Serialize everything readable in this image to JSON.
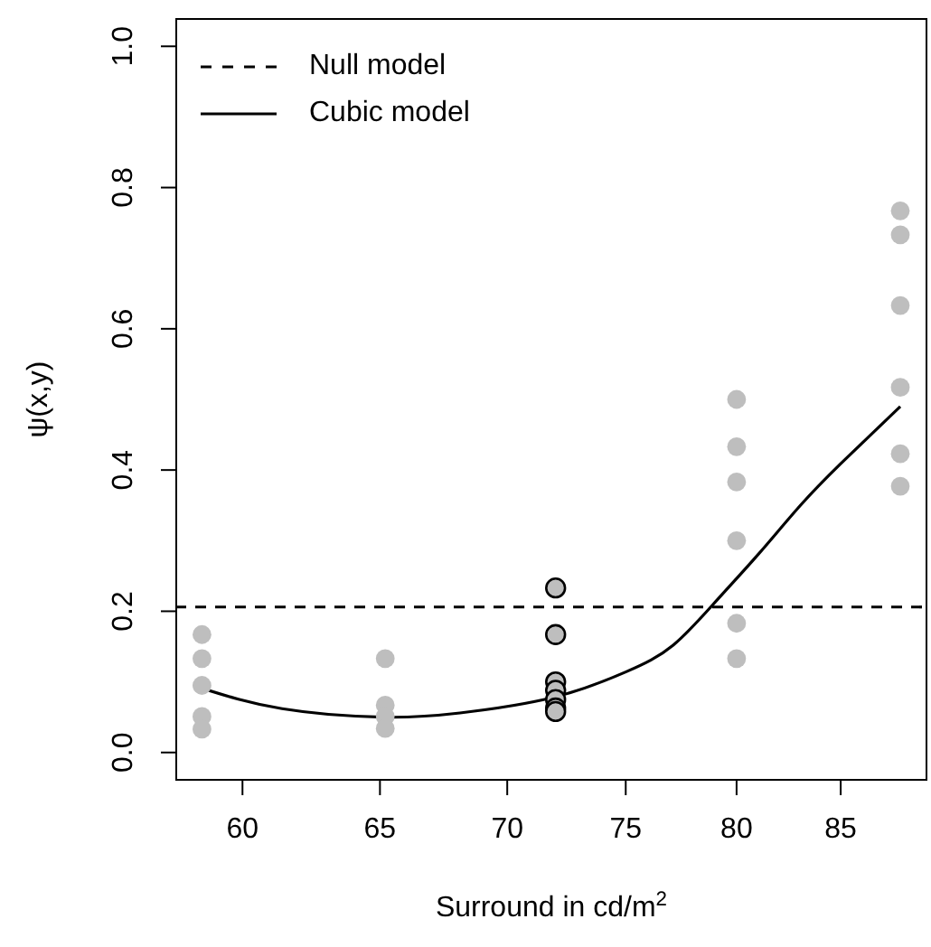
{
  "chart_data": {
    "type": "scatter",
    "xlabel": "Surround in cd/m$^{2}$",
    "ylabel": "ψ(x,y)",
    "log": "x",
    "xlim": [
      57.7,
      89.4
    ],
    "xticks": [
      60,
      65,
      70,
      75,
      80,
      85
    ],
    "ylim": [
      -0.04,
      1.04
    ],
    "yticks": [
      {
        "value": 0,
        "label": "0.0"
      },
      0.2,
      0.4,
      0.6,
      0.8,
      {
        "value": 1,
        "label": "1.0"
      }
    ],
    "legend": "top left",
    "series": [
      {
        "color": "#bebebe",
        "marker": "circle",
        "x": [
          58.6,
          58.6,
          58.6,
          58.6,
          58.6,
          65.2,
          65.2,
          65.2,
          65.2,
          80,
          80,
          80,
          80,
          80,
          80,
          88,
          88,
          88,
          88,
          88,
          88
        ],
        "values": [
          0.167,
          0.133,
          0.095,
          0.051,
          0.033,
          0.133,
          0.067,
          0.051,
          0.034,
          0.5,
          0.433,
          0.383,
          0.3,
          0.183,
          0.133,
          0.767,
          0.733,
          0.633,
          0.517,
          0.423,
          0.377
        ]
      },
      {
        "color": "#bebebe",
        "marker": "circle",
        "x": [
          72,
          72,
          72,
          72,
          72,
          72,
          72
        ],
        "values": [
          0.233,
          0.167,
          0.1,
          0.088,
          0.075,
          0.063,
          0.058
        ]
      },
      {
        "type": "line",
        "name": "Null model",
        "color": "#000000",
        "line_style": "dashed",
        "marker": "none",
        "x": [
          57.7,
          89.4
        ],
        "values": [
          0.206,
          0.206
        ]
      },
      {
        "type": "line",
        "name": "Cubic model",
        "color": "#000000",
        "line_style": "solid",
        "marker": "none",
        "x": [
          58.6,
          61.4,
          65.1,
          68.1,
          71.9,
          75,
          77.1,
          79.1,
          81,
          83,
          85,
          88
        ],
        "values": [
          0.091,
          0.062,
          0.05,
          0.056,
          0.078,
          0.114,
          0.152,
          0.216,
          0.28,
          0.349,
          0.409,
          0.49
        ]
      }
    ]
  }
}
